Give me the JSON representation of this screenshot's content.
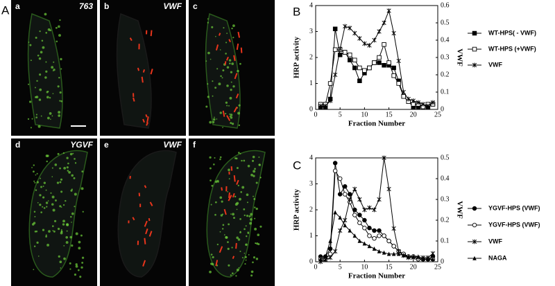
{
  "panel_labels": [
    "A",
    "B",
    "C"
  ],
  "images": [
    {
      "letter": "a",
      "label": "763"
    },
    {
      "letter": "b",
      "label": "VWF"
    },
    {
      "letter": "c"
    },
    {
      "letter": "d",
      "label": "YGVF"
    },
    {
      "letter": "e",
      "label": "VWF"
    },
    {
      "letter": "f"
    }
  ],
  "chart_data": [
    {
      "type": "line",
      "ylabel": "HRP activity",
      "y2label": "VWF",
      "xlabel": "Fraction Number",
      "x": [
        1,
        2,
        3,
        4,
        5,
        6,
        7,
        8,
        9,
        10,
        11,
        12,
        13,
        14,
        15,
        16,
        17,
        18,
        19,
        20,
        21,
        22,
        23,
        24
      ],
      "xlim": [
        0,
        25
      ],
      "xticks": [
        0,
        5,
        10,
        15,
        20,
        25
      ],
      "ylim": [
        0,
        4
      ],
      "yticks": [
        0,
        1,
        2,
        3,
        4
      ],
      "y2lim": [
        0,
        0.6
      ],
      "y2ticks": [
        0,
        0.1,
        0.2,
        0.3,
        0.4,
        0.5,
        0.6
      ],
      "series": [
        {
          "name": "WT-HPS( - VWF)",
          "color": "#000000",
          "marker": "filled-square",
          "values": [
            0.1,
            0.1,
            0.4,
            3.1,
            2.1,
            2.2,
            1.9,
            1.6,
            1.1,
            1.4,
            1.6,
            1.8,
            1.8,
            1.7,
            1.7,
            1.6,
            1.1,
            0.5,
            0.3,
            0.1,
            0.1,
            0.1,
            0.1,
            0.2
          ]
        },
        {
          "name": "WT-HPS (+VWF)",
          "color": "#000000",
          "marker": "open-square",
          "values": [
            0.2,
            0.2,
            1.0,
            2.3,
            2.3,
            2.2,
            2.1,
            1.9,
            1.6,
            1.5,
            1.6,
            1.8,
            2.0,
            2.5,
            1.8,
            1.3,
            1.0,
            0.5,
            0.3,
            0.2,
            0.2,
            0.1,
            0.2,
            0.2
          ]
        },
        {
          "name": "VWF",
          "color": "#000000",
          "marker": "star",
          "axis": "y2",
          "values": [
            0.02,
            0.02,
            0.05,
            0.2,
            0.35,
            0.48,
            0.47,
            0.44,
            0.41,
            0.38,
            0.37,
            0.4,
            0.45,
            0.5,
            0.57,
            0.44,
            0.28,
            0.1,
            0.06,
            0.05,
            0.04,
            0.03,
            0.02,
            0.04
          ]
        }
      ]
    },
    {
      "type": "line",
      "ylabel": "HRP activity",
      "y2label": "VWF",
      "xlabel": "Fraction Number",
      "x": [
        1,
        2,
        3,
        4,
        5,
        6,
        7,
        8,
        9,
        10,
        11,
        12,
        13,
        14,
        15,
        16,
        17,
        18,
        19,
        20,
        21,
        22,
        23,
        24
      ],
      "xlim": [
        0,
        25
      ],
      "xticks": [
        0,
        5,
        10,
        15,
        20,
        25
      ],
      "ylim": [
        0,
        4
      ],
      "yticks": [
        0,
        1,
        2,
        3,
        4
      ],
      "y2lim": [
        0,
        0.5
      ],
      "y2ticks": [
        0,
        0.1,
        0.2,
        0.3,
        0.4,
        0.5
      ],
      "series": [
        {
          "name": "YGVF-HPS (VWF)",
          "color": "#000000",
          "marker": "filled-circle",
          "values": [
            0.2,
            0.2,
            0.5,
            3.8,
            2.6,
            2.9,
            2.6,
            2.0,
            1.8,
            1.6,
            1.3,
            1.2,
            1.2,
            1.0,
            0.8,
            0.6,
            0.4,
            0.3,
            0.2,
            0.2,
            0.1,
            0.1,
            0.1,
            0.2
          ]
        },
        {
          "name": "YGVF-HPS (VWF)",
          "color": "#000000",
          "marker": "open-circle",
          "values": [
            0.1,
            0.1,
            0.3,
            3.5,
            3.2,
            2.6,
            2.3,
            1.8,
            1.5,
            1.3,
            1.0,
            0.9,
            1.0,
            1.0,
            0.8,
            0.6,
            0.4,
            0.3,
            0.2,
            0.2,
            0.1,
            0.1,
            0.1,
            0.1
          ]
        },
        {
          "name": "VWF",
          "color": "#000000",
          "marker": "star",
          "axis": "y2",
          "values": [
            0.0,
            0.01,
            0.02,
            0.05,
            0.15,
            0.2,
            0.3,
            0.35,
            0.3,
            0.25,
            0.26,
            0.25,
            0.3,
            0.5,
            0.35,
            0.16,
            0.05,
            0.03,
            0.02,
            0.02,
            0.02,
            0.02,
            0.02,
            0.04
          ]
        },
        {
          "name": "NAGA",
          "color": "#000000",
          "marker": "triangle",
          "values": [
            0.1,
            0.2,
            0.8,
            1.9,
            1.7,
            1.4,
            1.2,
            1.0,
            0.8,
            0.7,
            0.6,
            0.5,
            0.4,
            0.35,
            0.3,
            0.3,
            0.3,
            0.25,
            0.2,
            0.2,
            0.2,
            0.1,
            0.1,
            0.1
          ]
        }
      ]
    }
  ]
}
